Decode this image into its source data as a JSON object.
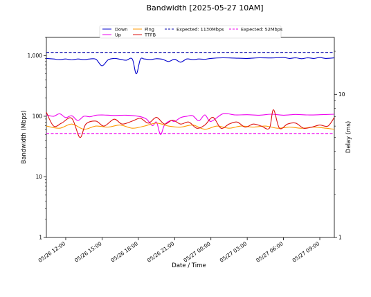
{
  "chart_data": {
    "type": "line",
    "title": "Bandwidth [2025-05-27 10AM]",
    "xlabel": "Date / Time",
    "ylabel": "Bandwidth (Mbps)",
    "y2label": "Delay (ms)",
    "yscale": "log",
    "y2scale": "log",
    "ylim": [
      1,
      2000
    ],
    "y2lim": [
      1,
      25
    ],
    "yticks": [
      {
        "v": 1,
        "label": "1"
      },
      {
        "v": 10,
        "label": "10"
      },
      {
        "v": 100,
        "label": "100"
      },
      {
        "v": 1000,
        "label": "1,000"
      }
    ],
    "y2ticks": [
      {
        "v": 1,
        "label": "1"
      },
      {
        "v": 10,
        "label": "10"
      }
    ],
    "xlim": [
      "2025-05-26 10:24",
      "2025-05-27 10:12"
    ],
    "xticks": [
      {
        "t": "2025-05-26 12:00",
        "label": "05/26 12:00"
      },
      {
        "t": "2025-05-26 15:00",
        "label": "05/26 15:00"
      },
      {
        "t": "2025-05-26 18:00",
        "label": "05/26 18:00"
      },
      {
        "t": "2025-05-26 21:00",
        "label": "05/26 21:00"
      },
      {
        "t": "2025-05-27 00:00",
        "label": "05/27 00:00"
      },
      {
        "t": "2025-05-27 03:00",
        "label": "05/27 03:00"
      },
      {
        "t": "2025-05-27 06:00",
        "label": "05/27 06:00"
      },
      {
        "t": "2025-05-27 09:00",
        "label": "05/27 09:00"
      }
    ],
    "grid": false,
    "legend_position": "top",
    "series": [
      {
        "name": "Down",
        "axis": "left",
        "color": "#0000cc",
        "style": "solid",
        "x": [
          "2025-05-26 10:24",
          "2025-05-26 11:00",
          "2025-05-26 11:30",
          "2025-05-26 12:00",
          "2025-05-26 12:30",
          "2025-05-26 13:00",
          "2025-05-26 13:30",
          "2025-05-26 14:00",
          "2025-05-26 14:30",
          "2025-05-26 15:00",
          "2025-05-26 15:30",
          "2025-05-26 16:00",
          "2025-05-26 16:30",
          "2025-05-26 17:00",
          "2025-05-26 17:30",
          "2025-05-26 17:50",
          "2025-05-26 18:10",
          "2025-05-26 18:30",
          "2025-05-26 19:00",
          "2025-05-26 19:30",
          "2025-05-26 20:00",
          "2025-05-26 20:30",
          "2025-05-26 21:00",
          "2025-05-26 21:30",
          "2025-05-26 22:00",
          "2025-05-26 22:30",
          "2025-05-26 23:00",
          "2025-05-26 23:30",
          "2025-05-27 00:00",
          "2025-05-27 01:00",
          "2025-05-27 02:00",
          "2025-05-27 03:00",
          "2025-05-27 04:00",
          "2025-05-27 05:00",
          "2025-05-27 06:00",
          "2025-05-27 06:30",
          "2025-05-27 07:00",
          "2025-05-27 07:30",
          "2025-05-27 08:00",
          "2025-05-27 08:30",
          "2025-05-27 09:00",
          "2025-05-27 09:30",
          "2025-05-27 10:12"
        ],
        "y": [
          900,
          880,
          860,
          880,
          850,
          880,
          860,
          880,
          870,
          680,
          850,
          900,
          870,
          840,
          880,
          500,
          870,
          880,
          860,
          890,
          870,
          800,
          870,
          780,
          880,
          860,
          880,
          870,
          900,
          920,
          910,
          900,
          920,
          915,
          930,
          900,
          920,
          890,
          920,
          900,
          930,
          900,
          920
        ]
      },
      {
        "name": "Up",
        "axis": "left",
        "color": "#ee00ee",
        "style": "solid",
        "x": [
          "2025-05-26 10:24",
          "2025-05-26 11:00",
          "2025-05-26 11:30",
          "2025-05-26 12:00",
          "2025-05-26 12:30",
          "2025-05-26 13:00",
          "2025-05-26 13:30",
          "2025-05-26 14:00",
          "2025-05-26 14:30",
          "2025-05-26 15:00",
          "2025-05-26 16:00",
          "2025-05-26 17:00",
          "2025-05-26 18:00",
          "2025-05-26 18:40",
          "2025-05-26 19:10",
          "2025-05-26 19:30",
          "2025-05-26 19:50",
          "2025-05-26 20:10",
          "2025-05-26 20:40",
          "2025-05-26 21:00",
          "2025-05-26 21:30",
          "2025-05-26 22:00",
          "2025-05-26 22:30",
          "2025-05-26 23:00",
          "2025-05-26 23:30",
          "2025-05-27 00:00",
          "2025-05-27 01:00",
          "2025-05-27 02:00",
          "2025-05-27 03:00",
          "2025-05-27 04:00",
          "2025-05-27 05:00",
          "2025-05-27 06:00",
          "2025-05-27 07:00",
          "2025-05-27 08:00",
          "2025-05-27 09:00",
          "2025-05-27 10:12"
        ],
        "y": [
          105,
          100,
          110,
          95,
          102,
          85,
          100,
          98,
          104,
          105,
          103,
          104,
          100,
          90,
          70,
          80,
          50,
          72,
          85,
          82,
          95,
          100,
          102,
          84,
          105,
          82,
          110,
          105,
          106,
          104,
          108,
          104,
          107,
          105,
          106,
          108
        ]
      },
      {
        "name": "Expected: 1130Mbps",
        "axis": "left",
        "color": "#0000aa",
        "style": "dashed",
        "x": [
          "2025-05-26 10:24",
          "2025-05-27 10:12"
        ],
        "y": [
          1130,
          1130
        ]
      },
      {
        "name": "Expected: 52Mbps",
        "axis": "left",
        "color": "#ee00ee",
        "style": "dashed",
        "x": [
          "2025-05-26 10:24",
          "2025-05-27 10:12"
        ],
        "y": [
          52,
          52
        ]
      },
      {
        "name": "Ping",
        "axis": "right",
        "color": "#ff9900",
        "style": "solid",
        "x": [
          "2025-05-26 10:24",
          "2025-05-26 11:30",
          "2025-05-26 12:30",
          "2025-05-26 13:30",
          "2025-05-26 14:30",
          "2025-05-26 15:30",
          "2025-05-26 16:30",
          "2025-05-26 17:30",
          "2025-05-26 18:30",
          "2025-05-26 19:30",
          "2025-05-26 20:30",
          "2025-05-26 21:30",
          "2025-05-26 22:30",
          "2025-05-26 23:30",
          "2025-05-27 00:30",
          "2025-05-27 01:30",
          "2025-05-27 02:30",
          "2025-05-27 03:30",
          "2025-05-27 04:30",
          "2025-05-27 05:30",
          "2025-05-27 06:30",
          "2025-05-27 07:30",
          "2025-05-27 08:30",
          "2025-05-27 09:30",
          "2025-05-27 10:12"
        ],
        "y": [
          6.0,
          5.8,
          6.2,
          5.7,
          6.0,
          5.9,
          6.1,
          5.8,
          6.0,
          6.3,
          6.0,
          5.9,
          6.1,
          5.7,
          6.0,
          5.8,
          6.0,
          5.9,
          6.0,
          5.8,
          5.9,
          5.8,
          5.9,
          5.8,
          5.7
        ]
      },
      {
        "name": "TTFB",
        "axis": "right",
        "color": "#dd1111",
        "style": "solid",
        "x": [
          "2025-05-26 10:24",
          "2025-05-26 11:00",
          "2025-05-26 11:40",
          "2025-05-26 12:30",
          "2025-05-26 13:10",
          "2025-05-26 13:40",
          "2025-05-26 14:30",
          "2025-05-26 15:10",
          "2025-05-26 16:00",
          "2025-05-26 16:40",
          "2025-05-26 17:30",
          "2025-05-26 18:10",
          "2025-05-26 18:50",
          "2025-05-26 19:30",
          "2025-05-26 20:10",
          "2025-05-26 20:50",
          "2025-05-26 21:30",
          "2025-05-26 22:10",
          "2025-05-26 22:50",
          "2025-05-26 23:30",
          "2025-05-27 00:10",
          "2025-05-27 00:50",
          "2025-05-27 01:30",
          "2025-05-27 02:10",
          "2025-05-27 02:50",
          "2025-05-27 03:30",
          "2025-05-27 04:10",
          "2025-05-27 04:50",
          "2025-05-27 05:10",
          "2025-05-27 05:40",
          "2025-05-27 06:20",
          "2025-05-27 07:00",
          "2025-05-27 07:40",
          "2025-05-27 08:20",
          "2025-05-27 09:00",
          "2025-05-27 09:40",
          "2025-05-27 10:12"
        ],
        "y": [
          7.5,
          6.0,
          6.3,
          6.8,
          5.0,
          6.2,
          6.5,
          6.0,
          6.7,
          6.2,
          6.5,
          6.8,
          6.3,
          6.9,
          6.2,
          6.6,
          6.2,
          6.4,
          5.8,
          6.1,
          6.9,
          5.8,
          6.2,
          6.4,
          5.9,
          6.2,
          6.0,
          5.8,
          7.8,
          5.8,
          6.2,
          6.3,
          5.8,
          5.9,
          6.1,
          6.0,
          6.9
        ]
      }
    ]
  }
}
